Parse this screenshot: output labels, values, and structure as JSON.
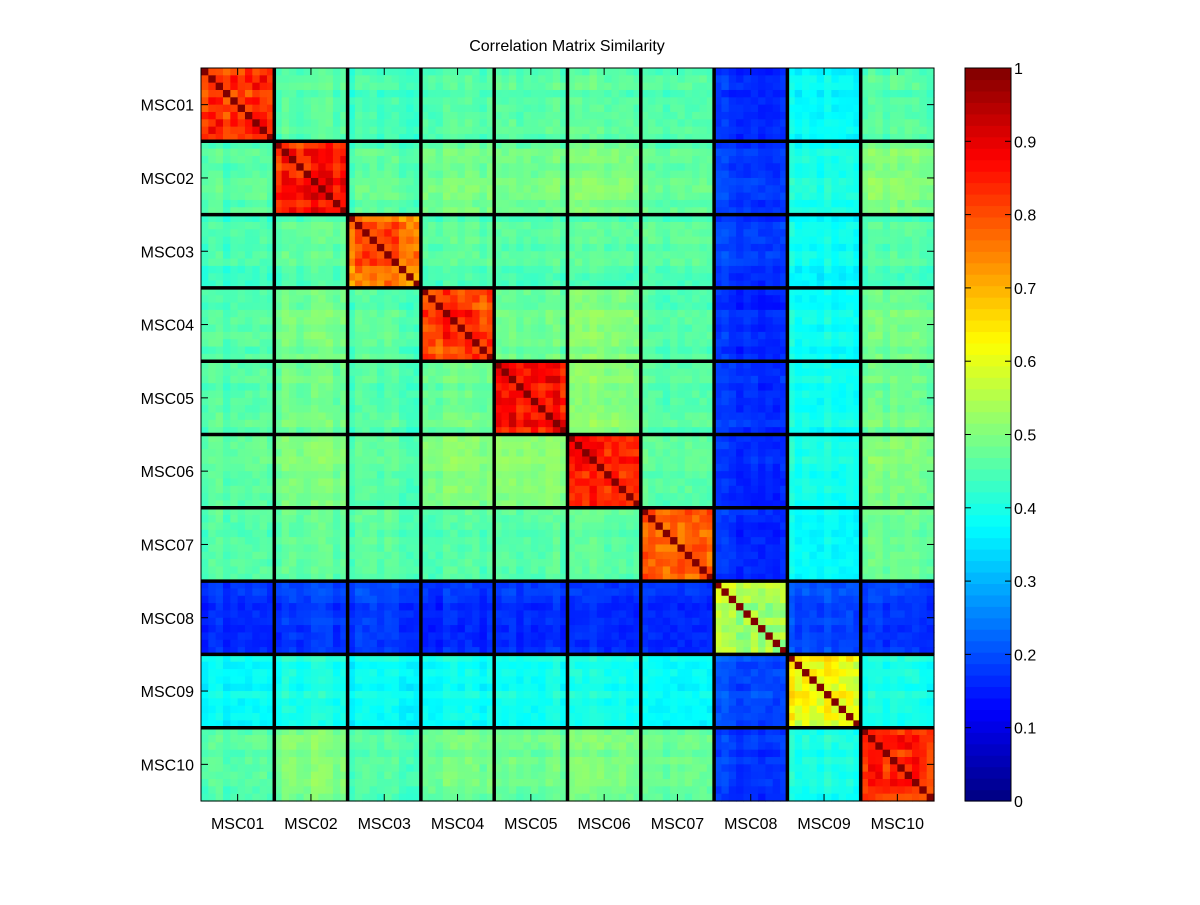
{
  "chart_data": {
    "type": "heatmap",
    "title": "Correlation Matrix Similarity",
    "xlabel": "",
    "ylabel": "",
    "categories": [
      "MSC01",
      "MSC02",
      "MSC03",
      "MSC04",
      "MSC05",
      "MSC06",
      "MSC07",
      "MSC08",
      "MSC09",
      "MSC10"
    ],
    "sessions_per_subject": 10,
    "colormap": "jet",
    "clim": [
      0,
      1
    ],
    "colorbar": {
      "position": "right",
      "ticks": [
        0,
        0.1,
        0.2,
        0.3,
        0.4,
        0.5,
        0.6,
        0.7,
        0.8,
        0.9,
        1
      ],
      "tick_labels": [
        "0",
        "0.1",
        "0.2",
        "0.3",
        "0.4",
        "0.5",
        "0.6",
        "0.7",
        "0.8",
        "0.9",
        "1"
      ]
    },
    "block_mean_similarity": [
      [
        0.84,
        0.46,
        0.44,
        0.46,
        0.46,
        0.47,
        0.46,
        0.17,
        0.38,
        0.46
      ],
      [
        0.46,
        0.85,
        0.46,
        0.49,
        0.48,
        0.5,
        0.47,
        0.18,
        0.4,
        0.5
      ],
      [
        0.44,
        0.46,
        0.76,
        0.46,
        0.45,
        0.46,
        0.46,
        0.18,
        0.38,
        0.45
      ],
      [
        0.46,
        0.49,
        0.46,
        0.83,
        0.48,
        0.51,
        0.46,
        0.17,
        0.39,
        0.49
      ],
      [
        0.46,
        0.48,
        0.45,
        0.48,
        0.86,
        0.51,
        0.46,
        0.17,
        0.39,
        0.48
      ],
      [
        0.47,
        0.5,
        0.46,
        0.51,
        0.51,
        0.86,
        0.47,
        0.17,
        0.4,
        0.5
      ],
      [
        0.46,
        0.47,
        0.46,
        0.46,
        0.46,
        0.47,
        0.79,
        0.17,
        0.38,
        0.48
      ],
      [
        0.17,
        0.18,
        0.18,
        0.17,
        0.17,
        0.17,
        0.17,
        0.55,
        0.2,
        0.18
      ],
      [
        0.38,
        0.4,
        0.38,
        0.39,
        0.39,
        0.4,
        0.38,
        0.2,
        0.62,
        0.4
      ],
      [
        0.46,
        0.5,
        0.45,
        0.49,
        0.48,
        0.5,
        0.48,
        0.18,
        0.4,
        0.84
      ]
    ],
    "diagonal_value": 1,
    "grid": false
  }
}
